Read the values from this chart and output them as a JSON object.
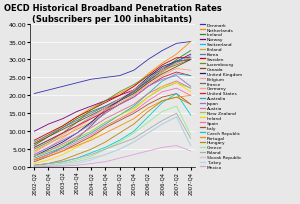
{
  "title": "OECD Historical Broadband Penetration Rates\n(Subscribers per 100 inhabitants)",
  "ylim": [
    0,
    40
  ],
  "yticks": [
    0,
    5,
    10,
    15,
    20,
    25,
    30,
    35,
    40
  ],
  "xtick_labels": [
    "2002-Q2",
    "2002-Q4",
    "2003-Q2",
    "2003-Q4",
    "2004-Q2",
    "2004-Q4",
    "2005-Q2",
    "2005-Q4",
    "2006-Q2",
    "2006-Q4",
    "2007-Q2",
    "2007-Q4"
  ],
  "bg_color": "#E8E8E8",
  "countries": [
    {
      "name": "Denmark",
      "color": "#3333AA",
      "data": [
        20.5,
        21.5,
        22.5,
        23.5,
        24.5,
        25.0,
        25.5,
        27.0,
        30.0,
        32.5,
        34.5,
        35.0
      ]
    },
    {
      "name": "Netherlands",
      "color": "#FF8C00",
      "data": [
        6.5,
        9.0,
        11.5,
        14.0,
        16.5,
        18.5,
        20.5,
        22.5,
        26.0,
        29.0,
        31.5,
        35.0
      ]
    },
    {
      "name": "Iceland",
      "color": "#228B22",
      "data": [
        6.0,
        8.5,
        11.0,
        13.5,
        15.5,
        17.0,
        19.0,
        21.0,
        24.0,
        27.0,
        30.0,
        32.5
      ]
    },
    {
      "name": "Norway",
      "color": "#800080",
      "data": [
        10.0,
        12.0,
        13.5,
        15.5,
        17.0,
        18.5,
        20.0,
        21.5,
        24.0,
        27.0,
        29.5,
        31.5
      ]
    },
    {
      "name": "Switzerland",
      "color": "#00BFFF",
      "data": [
        5.5,
        7.5,
        9.5,
        11.5,
        14.0,
        16.5,
        18.5,
        20.5,
        23.5,
        26.5,
        29.5,
        31.0
      ]
    },
    {
      "name": "Finland",
      "color": "#DAA520",
      "data": [
        4.5,
        6.5,
        8.5,
        10.5,
        12.5,
        15.0,
        17.5,
        20.0,
        23.5,
        26.5,
        29.0,
        30.5
      ]
    },
    {
      "name": "Korea",
      "color": "#4682B4",
      "data": [
        7.0,
        9.0,
        11.0,
        13.0,
        15.0,
        17.0,
        19.0,
        21.0,
        24.0,
        27.0,
        29.0,
        30.5
      ]
    },
    {
      "name": "Sweden",
      "color": "#CC0000",
      "data": [
        7.5,
        9.5,
        11.5,
        14.0,
        16.0,
        18.0,
        20.0,
        22.5,
        25.5,
        28.5,
        30.5,
        30.5
      ]
    },
    {
      "name": "Luxembourg",
      "color": "#6B8E23",
      "data": [
        5.0,
        7.0,
        9.5,
        12.5,
        16.0,
        18.5,
        21.0,
        23.0,
        25.5,
        27.0,
        28.5,
        30.0
      ]
    },
    {
      "name": "Canada",
      "color": "#8B4513",
      "data": [
        6.5,
        8.5,
        10.5,
        12.5,
        14.5,
        16.5,
        18.5,
        20.5,
        23.5,
        26.0,
        28.0,
        30.0
      ]
    },
    {
      "name": "United Kingdom",
      "color": "#191970",
      "data": [
        3.0,
        5.0,
        7.0,
        9.5,
        12.5,
        16.0,
        18.5,
        21.5,
        25.0,
        28.0,
        29.5,
        30.0
      ]
    },
    {
      "name": "Belgium",
      "color": "#FF9999",
      "data": [
        4.0,
        6.5,
        9.0,
        11.5,
        14.0,
        16.5,
        19.0,
        21.5,
        24.5,
        27.0,
        29.0,
        30.5
      ]
    },
    {
      "name": "France",
      "color": "#696969",
      "data": [
        2.0,
        3.5,
        5.5,
        8.0,
        11.5,
        15.5,
        18.5,
        21.0,
        24.5,
        27.5,
        29.5,
        30.0
      ]
    },
    {
      "name": "Germany",
      "color": "#FFA07A",
      "data": [
        3.5,
        5.5,
        8.0,
        11.0,
        13.5,
        16.0,
        18.0,
        20.0,
        23.0,
        25.5,
        27.5,
        27.0
      ]
    },
    {
      "name": "United States",
      "color": "#DC143C",
      "data": [
        5.5,
        7.5,
        9.5,
        11.5,
        13.5,
        15.5,
        17.5,
        19.5,
        22.5,
        25.0,
        26.5,
        25.5
      ]
    },
    {
      "name": "Australia",
      "color": "#20B2AA",
      "data": [
        2.5,
        4.0,
        5.5,
        7.5,
        9.5,
        12.0,
        14.5,
        17.0,
        20.5,
        24.0,
        26.0,
        25.5
      ]
    },
    {
      "name": "Japan",
      "color": "#9370DB",
      "data": [
        3.5,
        5.5,
        7.5,
        9.5,
        12.0,
        15.0,
        17.5,
        19.5,
        22.5,
        24.5,
        25.5,
        22.5
      ]
    },
    {
      "name": "Austria",
      "color": "#DB7093",
      "data": [
        3.0,
        4.5,
        6.5,
        8.5,
        11.0,
        13.5,
        15.5,
        17.5,
        20.5,
        22.5,
        24.0,
        22.0
      ]
    },
    {
      "name": "New Zealand",
      "color": "#9ACD32",
      "data": [
        3.0,
        4.5,
        6.0,
        8.0,
        10.0,
        12.5,
        14.5,
        16.5,
        19.5,
        22.0,
        23.5,
        22.0
      ]
    },
    {
      "name": "Ireland",
      "color": "#FFD700",
      "data": [
        1.0,
        2.0,
        3.5,
        5.5,
        8.0,
        11.0,
        13.5,
        16.0,
        19.5,
        22.5,
        23.5,
        21.0
      ]
    },
    {
      "name": "Spain",
      "color": "#FF69B4",
      "data": [
        2.0,
        3.5,
        5.0,
        7.0,
        9.0,
        11.5,
        13.5,
        15.5,
        18.5,
        21.0,
        22.0,
        20.0
      ]
    },
    {
      "name": "Italy",
      "color": "#A0522D",
      "data": [
        1.5,
        3.0,
        4.5,
        6.5,
        8.5,
        11.0,
        13.0,
        15.0,
        17.5,
        19.5,
        20.5,
        17.5
      ]
    },
    {
      "name": "Czech Republic",
      "color": "#00CED1",
      "data": [
        0.5,
        1.0,
        1.5,
        2.5,
        4.0,
        5.5,
        7.5,
        10.0,
        14.0,
        18.0,
        20.5,
        14.5
      ]
    },
    {
      "name": "Portugal",
      "color": "#FF8C00",
      "data": [
        2.0,
        3.0,
        4.5,
        6.0,
        7.5,
        9.5,
        11.5,
        13.5,
        16.5,
        18.5,
        19.5,
        20.0
      ]
    },
    {
      "name": "Hungary",
      "color": "#B8860B",
      "data": [
        0.5,
        1.0,
        2.0,
        3.5,
        5.0,
        7.0,
        9.5,
        12.0,
        15.5,
        18.5,
        19.5,
        17.5
      ]
    },
    {
      "name": "Greece",
      "color": "#90EE90",
      "data": [
        0.2,
        0.5,
        1.0,
        2.0,
        3.0,
        5.0,
        7.0,
        9.5,
        12.5,
        15.5,
        17.0,
        9.0
      ]
    },
    {
      "name": "Poland",
      "color": "#A9A9A9",
      "data": [
        0.5,
        1.0,
        1.5,
        2.5,
        3.5,
        5.0,
        6.5,
        8.0,
        10.5,
        13.0,
        15.0,
        8.0
      ]
    },
    {
      "name": "Slovak Republic",
      "color": "#C8C8C8",
      "data": [
        0.3,
        0.5,
        1.0,
        1.5,
        2.5,
        3.5,
        5.0,
        7.0,
        9.5,
        12.0,
        14.0,
        6.0
      ]
    },
    {
      "name": "Turkey",
      "color": "#ADD8E6",
      "data": [
        0.1,
        0.2,
        0.5,
        1.0,
        2.0,
        3.5,
        5.0,
        7.0,
        9.5,
        12.0,
        14.0,
        6.0
      ]
    },
    {
      "name": "Mexico",
      "color": "#DDA0DD",
      "data": [
        0.1,
        0.2,
        0.3,
        0.5,
        1.0,
        1.5,
        2.5,
        3.5,
        4.5,
        5.5,
        6.0,
        4.5
      ]
    }
  ]
}
